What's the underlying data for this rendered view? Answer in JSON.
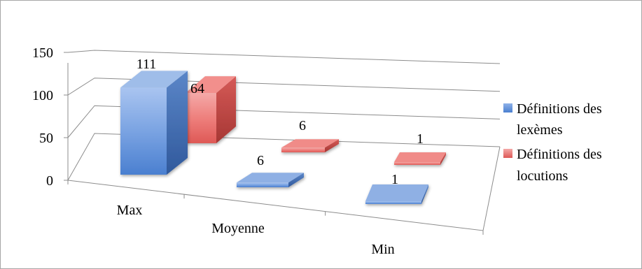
{
  "chart_data": {
    "type": "bar",
    "variant": "3d-column",
    "categories": [
      "Max",
      "Moyenne",
      "Min"
    ],
    "series": [
      {
        "name": "Définitions des lexèmes",
        "values": [
          111,
          6,
          1
        ],
        "color": "#4f81bd"
      },
      {
        "name": "Définitions des locutions",
        "values": [
          64,
          6,
          1
        ],
        "color": "#c0504d"
      }
    ],
    "ylim": [
      0,
      150
    ],
    "yticks": [
      0,
      50,
      100,
      150
    ],
    "gridlines": true,
    "legend_position": "right",
    "data_labels": true
  },
  "legend": {
    "items": [
      {
        "lines": [
          "Définitions des",
          "lexèmes"
        ],
        "color": "#4f81bd"
      },
      {
        "lines": [
          "Définitions des",
          "locutions"
        ],
        "color": "#c0504d"
      }
    ]
  }
}
